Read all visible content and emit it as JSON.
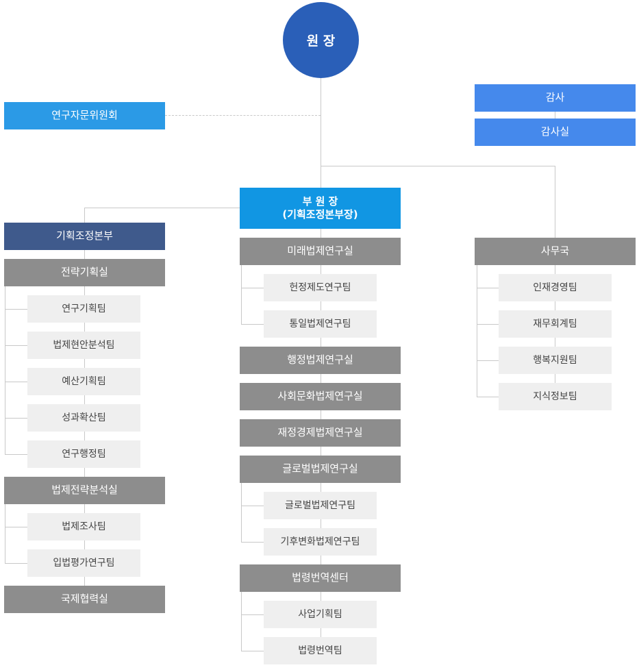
{
  "president": "원 장",
  "advisory_committee": "연구자문위원회",
  "audit": {
    "label": "감사",
    "office": "감사실"
  },
  "vice_president": {
    "line1": "부 원 장",
    "line2": "(기획조정본부장)"
  },
  "planning_hq": {
    "label": "기획조정본부",
    "strategy_office": {
      "label": "전략기획실",
      "teams": [
        "연구기획팀",
        "법제현안분석팀",
        "예산기획팀",
        "성과확산팀",
        "연구행정팀"
      ]
    },
    "legal_strategy_office": {
      "label": "법제전략분석실",
      "teams": [
        "법제조사팀",
        "입법평가연구팀"
      ]
    },
    "international_office": {
      "label": "국제협력실"
    }
  },
  "research_offices": {
    "future_law": {
      "label": "미래법제연구실",
      "teams": [
        "헌정제도연구팀",
        "통일법제연구팀"
      ]
    },
    "administrative_law": {
      "label": "행정법제연구실"
    },
    "social_culture_law": {
      "label": "사회문화법제연구실"
    },
    "finance_economy_law": {
      "label": "재정경제법제연구실"
    },
    "global_law": {
      "label": "글로벌법제연구실",
      "teams": [
        "글로벌법제연구팀",
        "기후변화법제연구팀"
      ]
    },
    "translation_center": {
      "label": "법령번역센터",
      "teams": [
        "사업기획팀",
        "법령번역팀"
      ]
    }
  },
  "secretariat": {
    "label": "사무국",
    "teams": [
      "인재경영팀",
      "재무회계팀",
      "행복지원팀",
      "지식정보팀"
    ]
  }
}
